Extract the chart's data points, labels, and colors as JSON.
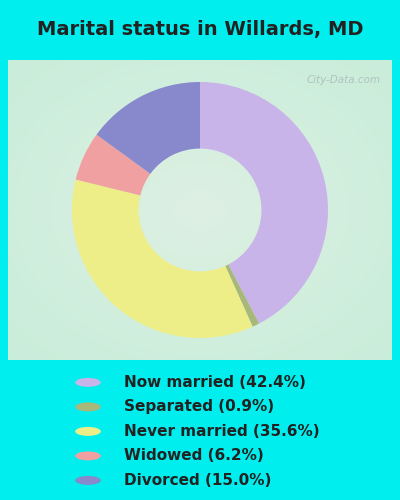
{
  "title": "Marital status in Willards, MD",
  "slices": [
    {
      "label": "Now married (42.4%)",
      "value": 42.4,
      "color": "#C8B4E8"
    },
    {
      "label": "Separated (0.9%)",
      "value": 0.9,
      "color": "#A8B87A"
    },
    {
      "label": "Never married (35.6%)",
      "value": 35.6,
      "color": "#EEEE88"
    },
    {
      "label": "Widowed (6.2%)",
      "value": 6.2,
      "color": "#F0A0A0"
    },
    {
      "label": "Divorced (15.0%)",
      "value": 15.0,
      "color": "#8888CC"
    }
  ],
  "bg_color": "#00EEEE",
  "legend_labels": [
    "Now married (42.4%)",
    "Separated (0.9%)",
    "Never married (35.6%)",
    "Widowed (6.2%)",
    "Divorced (15.0%)"
  ],
  "legend_colors": [
    "#C8B4E8",
    "#A8B87A",
    "#EEEE88",
    "#F0A0A0",
    "#8888CC"
  ],
  "title_fontsize": 14,
  "legend_fontsize": 11,
  "text_color": "#222222",
  "watermark": "City-Data.com",
  "start_angle": 90
}
